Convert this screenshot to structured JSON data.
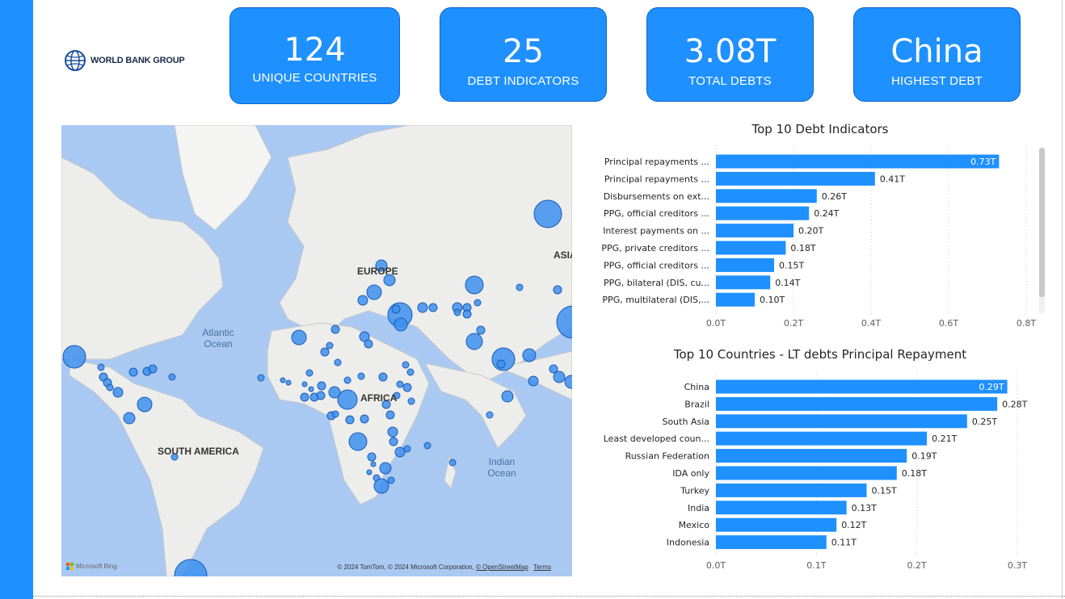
{
  "logo": {
    "text": "WORLD BANK GROUP",
    "icon": "globe-icon"
  },
  "kpis": [
    {
      "value": "124",
      "label": "UNIQUE COUNTRIES"
    },
    {
      "value": "25",
      "label": "DEBT INDICATORS"
    },
    {
      "value": "3.08T",
      "label": "TOTAL DEBTS"
    },
    {
      "value": "China",
      "label": "HIGHEST DEBT"
    }
  ],
  "map": {
    "labels": {
      "europe": "EUROPE",
      "asia": "ASIA",
      "africa": "AFRICA",
      "south_america": "SOUTH AMERICA"
    },
    "oceans": {
      "atlantic": "Atlantic Ocean",
      "indian": "Indian Ocean"
    },
    "bing": "Microsoft Bing",
    "copyright_text": "© 2024 TomTom, © 2024 Microsoft Corporation,",
    "osm_link": "© OpenStreetMap",
    "terms_link": "Terms",
    "bubble_color": "#3d8ff0"
  },
  "colors": {
    "accent": "#1e90ff",
    "bar": "#1e90ff"
  },
  "chart_data": [
    {
      "type": "bar",
      "orientation": "horizontal",
      "title": "Top 10 Debt Indicators",
      "categories": [
        "Principal repayments ...",
        "Principal repayments ...",
        "Disbursements on ext...",
        "PPG, official creditors ...",
        "Interest payments on ...",
        "PPG, private creditors ...",
        "PPG, official creditors ...",
        "PPG, bilateral (DIS, cu...",
        "PPG, multilateral (DIS,..."
      ],
      "values": [
        0.73,
        0.41,
        0.26,
        0.24,
        0.2,
        0.18,
        0.15,
        0.14,
        0.1
      ],
      "value_labels": [
        "0.73T",
        "0.41T",
        "0.26T",
        "0.24T",
        "0.20T",
        "0.18T",
        "0.15T",
        "0.14T",
        "0.10T"
      ],
      "x_ticks": [
        "0.0T",
        "0.2T",
        "0.4T",
        "0.6T",
        "0.8T"
      ],
      "xlim": [
        0,
        0.8
      ],
      "grid": true
    },
    {
      "type": "bar",
      "orientation": "horizontal",
      "title": "Top 10 Countries - LT debts Principal Repayment",
      "categories": [
        "China",
        "Brazil",
        "South Asia",
        "Least developed coun...",
        "Russian Federation",
        "IDA only",
        "Turkey",
        "India",
        "Mexico",
        "Indonesia"
      ],
      "values": [
        0.29,
        0.28,
        0.25,
        0.21,
        0.19,
        0.18,
        0.15,
        0.13,
        0.12,
        0.11
      ],
      "value_labels": [
        "0.29T",
        "0.28T",
        "0.25T",
        "0.21T",
        "0.19T",
        "0.18T",
        "0.15T",
        "0.13T",
        "0.12T",
        "0.11T"
      ],
      "x_ticks": [
        "0.0T",
        "0.1T",
        "0.2T",
        "0.3T"
      ],
      "xlim": [
        0,
        0.3
      ],
      "grid": true
    }
  ]
}
